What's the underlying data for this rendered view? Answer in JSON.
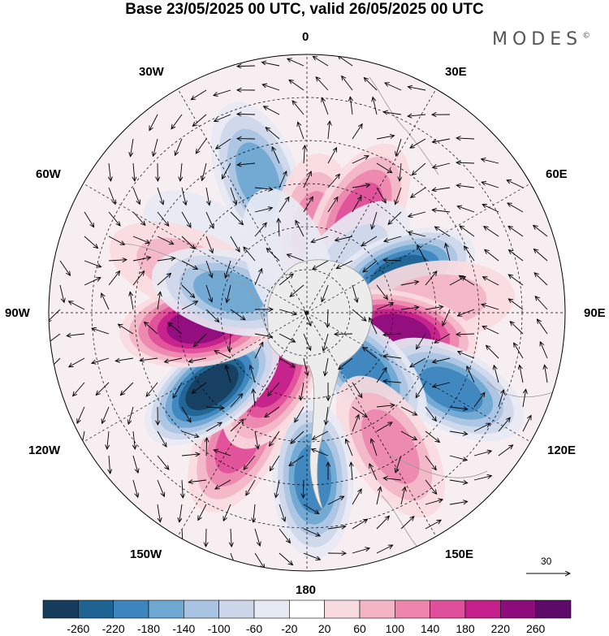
{
  "title": "Base 23/05/2025 00 UTC, valid 26/05/2025 00 UTC",
  "brand": "MODES",
  "brand_mark": "©",
  "longitude_labels": {
    "top": "0",
    "top_right": "30E",
    "right_upper": "60E",
    "right": "90E",
    "right_lower": "120E",
    "bottom_right": "150E",
    "bottom": "180",
    "bottom_left": "150W",
    "left_lower": "120W",
    "left": "90W",
    "left_upper": "60W",
    "top_left": "30W"
  },
  "reference_vector": {
    "label": "30"
  },
  "colorbar": {
    "labels": [
      "-260",
      "-220",
      "-180",
      "-140",
      "-100",
      "-60",
      "-20",
      "20",
      "60",
      "100",
      "140",
      "180",
      "220",
      "260"
    ],
    "colors": [
      "#173d5e",
      "#1e6391",
      "#3c86bd",
      "#6ea7d2",
      "#a9c4e2",
      "#cdd7ea",
      "#e7e9f3",
      "#ffffff",
      "#f8dbe0",
      "#f3b5c6",
      "#ec86ad",
      "#df4f9a",
      "#c41f8b",
      "#8e0d7d",
      "#5d0a68"
    ]
  },
  "anomaly_centers": [
    {
      "lon": -20,
      "lat": -40,
      "value": -140
    },
    {
      "lon": -55,
      "lat": -50,
      "value": -20
    },
    {
      "lon": -70,
      "lat": -45,
      "value": 60
    },
    {
      "lon": 5,
      "lat": -62,
      "value": 100
    },
    {
      "lon": 28,
      "lat": -52,
      "value": 140
    },
    {
      "lon": 42,
      "lat": -68,
      "value": -60
    },
    {
      "lon": 68,
      "lat": -55,
      "value": -220
    },
    {
      "lon": 85,
      "lat": -45,
      "value": 60
    },
    {
      "lon": 102,
      "lat": -57,
      "value": 220
    },
    {
      "lon": 118,
      "lat": -33,
      "value": -180
    },
    {
      "lon": 135,
      "lat": -62,
      "value": -180
    },
    {
      "lon": 148,
      "lat": -35,
      "value": 100
    },
    {
      "lon": 178,
      "lat": -32,
      "value": -180
    },
    {
      "lon": -152,
      "lat": -40,
      "value": 140
    },
    {
      "lon": -152,
      "lat": -65,
      "value": 180
    },
    {
      "lon": -128,
      "lat": -48,
      "value": -260
    },
    {
      "lon": -97,
      "lat": -52,
      "value": 220
    },
    {
      "lon": -75,
      "lat": -62,
      "value": -140
    },
    {
      "lon": -20,
      "lat": -72,
      "value": -20
    }
  ]
}
